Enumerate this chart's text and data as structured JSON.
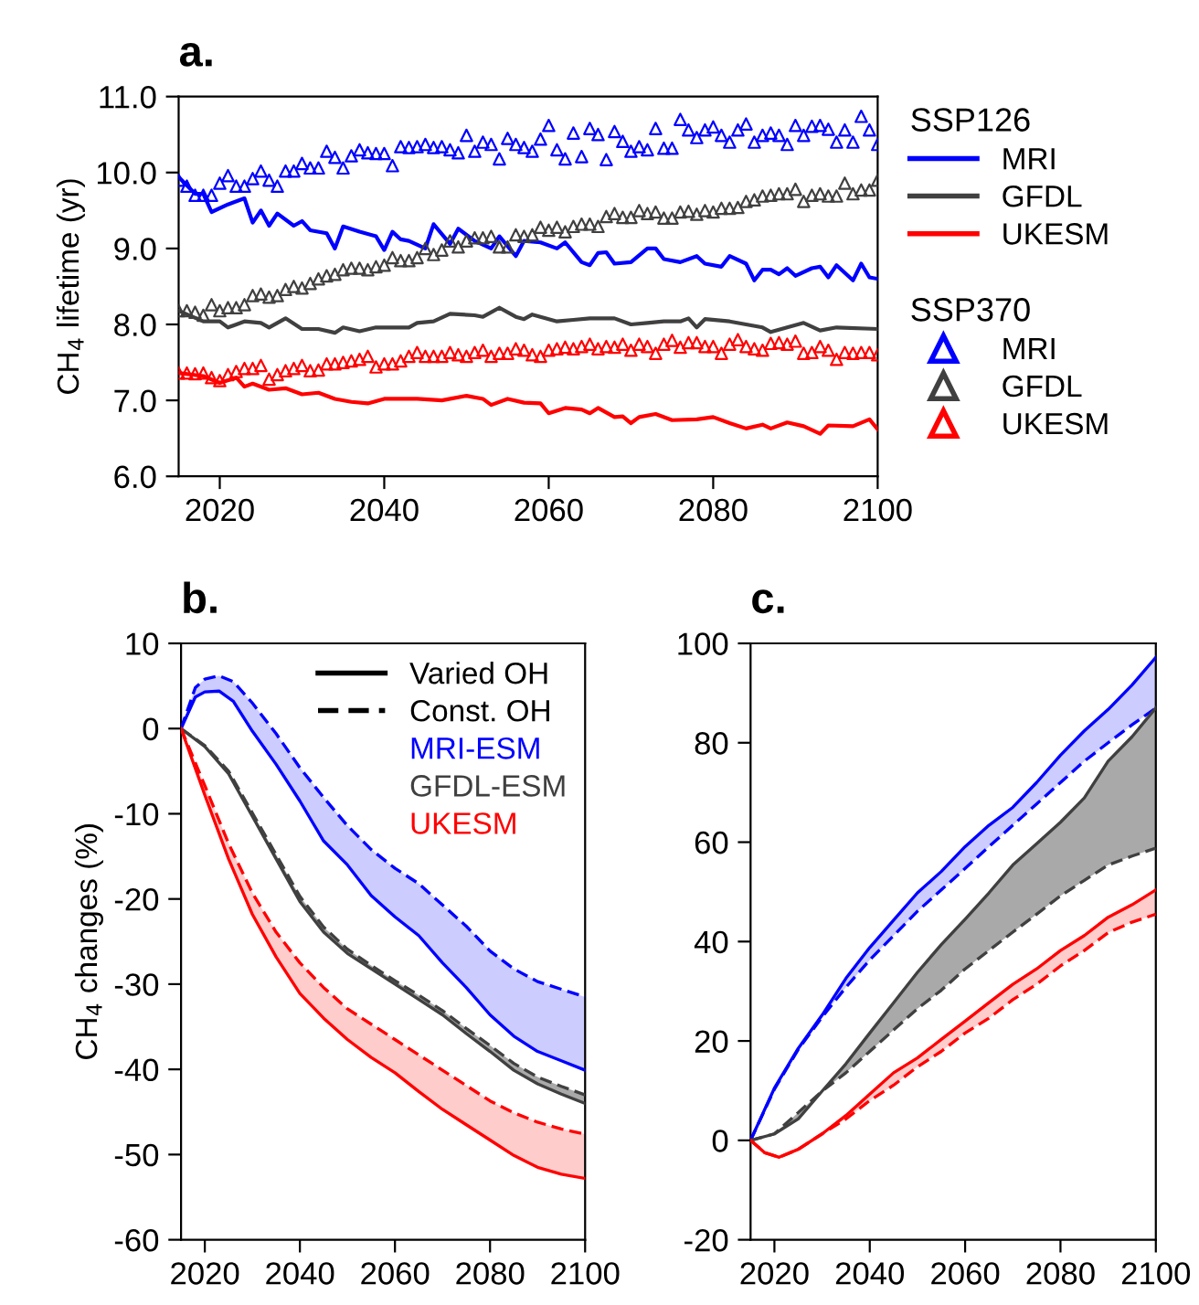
{
  "chart_data": [
    {
      "type": "line",
      "title": "a.",
      "ylabel": "CH$_{4}$ lifetime (yr)",
      "legend": "right",
      "legend_title": [
        "SSP126",
        "SSP370"
      ],
      "xlim": [
        2015,
        2100
      ],
      "xticks": [
        2020,
        2040,
        2060,
        2080,
        2100
      ],
      "ylim": [
        6,
        11
      ],
      "yticks": [
        {
          "value": 6,
          "label": "6.0"
        },
        {
          "value": 7,
          "label": "7.0"
        },
        {
          "value": 8,
          "label": "8.0"
        },
        {
          "value": 9,
          "label": "9.0"
        },
        {
          "value": 10,
          "label": "10.0"
        },
        {
          "value": 11,
          "label": "11.0"
        }
      ],
      "x": [
        2015,
        2016,
        2017,
        2018,
        2019,
        2020,
        2021,
        2022,
        2023,
        2024,
        2025,
        2026,
        2027,
        2028,
        2029,
        2030,
        2031,
        2032,
        2033,
        2034,
        2035,
        2036,
        2037,
        2038,
        2039,
        2040,
        2041,
        2042,
        2043,
        2044,
        2045,
        2046,
        2047,
        2048,
        2049,
        2050,
        2051,
        2052,
        2053,
        2054,
        2055,
        2056,
        2057,
        2058,
        2059,
        2060,
        2061,
        2062,
        2063,
        2064,
        2065,
        2066,
        2067,
        2068,
        2069,
        2070,
        2071,
        2072,
        2073,
        2074,
        2075,
        2076,
        2077,
        2078,
        2079,
        2080,
        2081,
        2082,
        2083,
        2084,
        2085,
        2086,
        2087,
        2088,
        2089,
        2090,
        2091,
        2092,
        2093,
        2094,
        2095,
        2096,
        2097,
        2098,
        2099,
        2100
      ],
      "series": [
        {
          "name": "MRI",
          "color": "#0000ff",
          "x": [
            2015,
            2017,
            2018,
            2019,
            2021,
            2023,
            2024,
            2025,
            2026,
            2027,
            2029,
            2030,
            2031,
            2033,
            2034,
            2035,
            2037,
            2039,
            2040,
            2041,
            2042,
            2043,
            2045,
            2046,
            2048,
            2049,
            2051,
            2053,
            2054,
            2056,
            2057,
            2059,
            2061,
            2062,
            2064,
            2065,
            2066,
            2067,
            2068,
            2070,
            2072,
            2073,
            2074,
            2076,
            2078,
            2079,
            2081,
            2082,
            2084,
            2085,
            2086,
            2087,
            2088,
            2089,
            2090,
            2092,
            2093,
            2094,
            2095,
            2097,
            2098,
            2099,
            2100
          ],
          "values": [
            9.94,
            9.72,
            9.72,
            9.48,
            9.58,
            9.66,
            9.34,
            9.5,
            9.3,
            9.46,
            9.3,
            9.36,
            9.24,
            9.2,
            9.0,
            9.29,
            9.22,
            9.16,
            8.98,
            9.22,
            9.12,
            9.1,
            9.0,
            9.32,
            9.06,
            9.26,
            9.1,
            9.0,
            9.16,
            8.9,
            9.1,
            9.08,
            9.0,
            9.08,
            8.82,
            8.78,
            8.94,
            8.95,
            8.8,
            8.82,
            9.0,
            9.0,
            8.86,
            8.82,
            8.9,
            8.8,
            8.76,
            8.9,
            8.8,
            8.58,
            8.72,
            8.72,
            8.66,
            8.74,
            8.64,
            8.74,
            8.76,
            8.62,
            8.78,
            8.58,
            8.8,
            8.62,
            8.6
          ]
        },
        {
          "name": "GFDL",
          "color": "#404040",
          "x": [
            2015,
            2018,
            2020,
            2021,
            2023,
            2025,
            2026,
            2028,
            2030,
            2032,
            2034,
            2035,
            2037,
            2039,
            2041,
            2043,
            2044,
            2046,
            2048,
            2051,
            2052,
            2054,
            2056,
            2057,
            2058,
            2061,
            2063,
            2065,
            2068,
            2070,
            2072,
            2074,
            2076,
            2077,
            2078,
            2079,
            2082,
            2086,
            2087,
            2089,
            2091,
            2093,
            2095,
            2100
          ],
          "values": [
            8.18,
            8.04,
            8.04,
            7.96,
            8.04,
            8.02,
            7.96,
            8.08,
            7.94,
            7.94,
            7.89,
            7.96,
            7.91,
            7.96,
            7.96,
            7.96,
            8.02,
            8.04,
            8.14,
            8.12,
            8.1,
            8.22,
            8.1,
            8.07,
            8.13,
            8.04,
            8.06,
            8.08,
            8.08,
            8.0,
            8.02,
            8.04,
            8.04,
            8.08,
            7.96,
            8.07,
            8.04,
            7.96,
            7.9,
            7.96,
            8.02,
            7.92,
            7.96,
            7.94
          ]
        },
        {
          "name": "UKESM",
          "color": "#ff0000",
          "x": [
            2015,
            2018,
            2020,
            2022,
            2023,
            2024,
            2026,
            2028,
            2030,
            2032,
            2034,
            2036,
            2038,
            2040,
            2044,
            2047,
            2050,
            2052,
            2053,
            2055,
            2057,
            2059,
            2060,
            2062,
            2064,
            2065,
            2066,
            2068,
            2069,
            2070,
            2071,
            2073,
            2075,
            2078,
            2080,
            2082,
            2084,
            2086,
            2087,
            2089,
            2091,
            2093,
            2094,
            2097,
            2099,
            2100
          ],
          "values": [
            7.36,
            7.32,
            7.23,
            7.3,
            7.18,
            7.22,
            7.14,
            7.16,
            7.08,
            7.1,
            7.02,
            6.98,
            6.96,
            7.02,
            7.02,
            7.0,
            7.06,
            7.02,
            6.94,
            7.02,
            6.97,
            6.96,
            6.83,
            6.9,
            6.88,
            6.83,
            6.9,
            6.78,
            6.79,
            6.7,
            6.78,
            6.82,
            6.74,
            6.75,
            6.78,
            6.7,
            6.63,
            6.68,
            6.63,
            6.71,
            6.66,
            6.56,
            6.67,
            6.66,
            6.75,
            6.62
          ]
        },
        {
          "name": "MRI",
          "type": "scatter",
          "marker": "triangle",
          "color": "#0000ff",
          "values": [
            9.9,
            9.82,
            9.7,
            9.7,
            9.7,
            9.86,
            9.96,
            9.82,
            9.82,
            9.92,
            10.02,
            9.9,
            9.82,
            10.02,
            10.02,
            10.12,
            10.06,
            10.06,
            10.28,
            10.2,
            10.06,
            10.22,
            10.3,
            10.26,
            10.25,
            10.25,
            10.09,
            10.34,
            10.33,
            10.34,
            10.37,
            10.33,
            10.34,
            10.3,
            10.26,
            10.49,
            10.28,
            10.4,
            10.37,
            10.18,
            10.45,
            10.37,
            10.33,
            10.28,
            10.44,
            10.62,
            10.3,
            10.18,
            10.52,
            10.21,
            10.58,
            10.5,
            10.17,
            10.54,
            10.41,
            10.28,
            10.34,
            10.3,
            10.58,
            10.32,
            10.32,
            10.7,
            10.56,
            10.46,
            10.56,
            10.6,
            10.49,
            10.4,
            10.56,
            10.64,
            10.4,
            10.49,
            10.52,
            10.49,
            10.37,
            10.62,
            10.49,
            10.61,
            10.62,
            10.57,
            10.4,
            10.56,
            10.4,
            10.74,
            10.56,
            10.37
          ]
        },
        {
          "name": "GFDL",
          "type": "scatter",
          "marker": "triangle",
          "color": "#404040",
          "values": [
            8.18,
            8.18,
            8.16,
            8.12,
            8.26,
            8.18,
            8.22,
            8.22,
            8.26,
            8.38,
            8.4,
            8.36,
            8.38,
            8.46,
            8.5,
            8.48,
            8.54,
            8.6,
            8.64,
            8.66,
            8.72,
            8.74,
            8.74,
            8.72,
            8.76,
            8.78,
            8.88,
            8.84,
            8.84,
            8.88,
            9.0,
            8.92,
            8.98,
            9.1,
            9.02,
            9.1,
            9.14,
            9.14,
            9.16,
            9.02,
            9.02,
            9.18,
            9.16,
            9.18,
            9.28,
            9.24,
            9.28,
            9.22,
            9.29,
            9.32,
            9.32,
            9.29,
            9.42,
            9.46,
            9.41,
            9.41,
            9.5,
            9.46,
            9.48,
            9.4,
            9.4,
            9.48,
            9.49,
            9.45,
            9.5,
            9.48,
            9.53,
            9.53,
            9.54,
            9.62,
            9.64,
            9.69,
            9.7,
            9.72,
            9.72,
            9.78,
            9.62,
            9.7,
            9.72,
            9.69,
            9.69,
            9.86,
            9.72,
            9.77,
            9.77,
            9.9
          ]
        },
        {
          "name": "UKESM",
          "type": "scatter",
          "marker": "triangle",
          "color": "#ff0000",
          "values": [
            7.36,
            7.36,
            7.35,
            7.36,
            7.3,
            7.26,
            7.34,
            7.38,
            7.42,
            7.42,
            7.46,
            7.28,
            7.34,
            7.39,
            7.42,
            7.46,
            7.39,
            7.4,
            7.48,
            7.48,
            7.5,
            7.52,
            7.54,
            7.58,
            7.44,
            7.48,
            7.48,
            7.52,
            7.58,
            7.63,
            7.58,
            7.58,
            7.58,
            7.63,
            7.6,
            7.58,
            7.63,
            7.66,
            7.58,
            7.62,
            7.62,
            7.68,
            7.66,
            7.6,
            7.58,
            7.66,
            7.68,
            7.7,
            7.68,
            7.71,
            7.74,
            7.68,
            7.71,
            7.7,
            7.74,
            7.66,
            7.74,
            7.71,
            7.62,
            7.74,
            7.79,
            7.7,
            7.76,
            7.76,
            7.71,
            7.71,
            7.62,
            7.74,
            7.8,
            7.71,
            7.68,
            7.66,
            7.75,
            7.76,
            7.74,
            7.78,
            7.62,
            7.63,
            7.71,
            7.66,
            7.54,
            7.63,
            7.62,
            7.63,
            7.63,
            7.6
          ]
        }
      ]
    },
    {
      "type": "line",
      "title": "b.",
      "ylabel": "CH$_{4}$ changes (%)",
      "legend": "top right",
      "xlim": [
        2015,
        2100
      ],
      "xticks": [
        2020,
        2040,
        2060,
        2080,
        2100
      ],
      "ylim": [
        -60,
        10
      ],
      "yticks": [
        -60,
        -50,
        -40,
        -30,
        -20,
        -10,
        0,
        10
      ],
      "x": [
        2015,
        2020,
        2025,
        2030,
        2035,
        2040,
        2045,
        2050,
        2055,
        2060,
        2065,
        2070,
        2075,
        2080,
        2085,
        2090,
        2095,
        2100
      ],
      "series": [
        {
          "name": "Varied OH",
          "color": "#000000",
          "line_style": "solid",
          "values": [
            null,
            null,
            null,
            null,
            null,
            null,
            null,
            null,
            null,
            null,
            null,
            null,
            null,
            null,
            null,
            null,
            null,
            null
          ]
        },
        {
          "name": "Const. OH",
          "color": "#000000",
          "line_style": "dashed",
          "values": [
            null,
            null,
            null,
            null,
            null,
            null,
            null,
            null,
            null,
            null,
            null,
            null,
            null,
            null,
            null,
            null,
            null,
            null
          ]
        },
        {
          "name": "MRI-ESM",
          "color": "#0000ff",
          "line_style": "solid",
          "x": [
            2015,
            2018,
            2020,
            2023,
            2026,
            2030,
            2035,
            2040,
            2045,
            2050,
            2055,
            2060,
            2065,
            2070,
            2075,
            2080,
            2085,
            2090,
            2095,
            2100
          ],
          "values": [
            0,
            3.7,
            4.3,
            4.4,
            3.2,
            -0.3,
            -4.2,
            -8.5,
            -13.2,
            -16.0,
            -19.6,
            -22.1,
            -24.3,
            -27.5,
            -30.4,
            -33.6,
            -36.1,
            -37.9,
            -39.0,
            -40.1
          ],
          "lower": [
            0,
            3.7,
            4.3,
            4.4,
            3.2,
            -0.3,
            -4.2,
            -8.5,
            -13.2,
            -16.0,
            -19.6,
            -22.1,
            -24.3,
            -27.5,
            -30.4,
            -33.6,
            -36.1,
            -37.9,
            -39.0,
            -40.1
          ],
          "upper": [
            0,
            4.8,
            5.8,
            6.2,
            5.5,
            3.0,
            -0.6,
            -4.6,
            -8.1,
            -11.4,
            -14.2,
            -16.4,
            -18.2,
            -20.7,
            -23.2,
            -26.1,
            -28.2,
            -29.7,
            -30.6,
            -31.5
          ]
        },
        {
          "color": "#0000ff",
          "line_style": "dashed",
          "x": [
            2015,
            2018,
            2020,
            2023,
            2026,
            2030,
            2035,
            2040,
            2045,
            2050,
            2055,
            2060,
            2065,
            2070,
            2075,
            2080,
            2085,
            2090,
            2095,
            2100
          ],
          "values": [
            0,
            4.8,
            5.8,
            6.2,
            5.5,
            3.0,
            -0.6,
            -4.6,
            -8.1,
            -11.4,
            -14.2,
            -16.4,
            -18.2,
            -20.7,
            -23.2,
            -26.1,
            -28.2,
            -29.7,
            -30.6,
            -31.5
          ]
        },
        {
          "name": "GFDL-ESM",
          "color": "#404040",
          "line_style": "solid",
          "values": [
            0,
            -2.1,
            -5.3,
            -10.3,
            -15.3,
            -20.3,
            -23.9,
            -26.4,
            -28.2,
            -30.0,
            -31.8,
            -33.6,
            -35.8,
            -37.9,
            -40.1,
            -41.7,
            -42.9,
            -44.0
          ],
          "lower": [
            0,
            -2.1,
            -5.3,
            -10.3,
            -15.3,
            -20.3,
            -23.9,
            -26.4,
            -28.2,
            -30.0,
            -31.8,
            -33.6,
            -35.8,
            -37.9,
            -40.1,
            -41.7,
            -42.9,
            -44.0
          ],
          "upper": [
            0,
            -2.0,
            -5.0,
            -9.9,
            -14.8,
            -19.7,
            -23.3,
            -25.9,
            -27.8,
            -29.6,
            -31.3,
            -33.1,
            -35.2,
            -37.2,
            -39.3,
            -40.9,
            -42.0,
            -43.0
          ]
        },
        {
          "color": "#404040",
          "line_style": "dashed",
          "values": [
            0,
            -2.0,
            -5.0,
            -9.9,
            -14.8,
            -19.7,
            -23.3,
            -25.9,
            -27.8,
            -29.6,
            -31.3,
            -33.1,
            -35.2,
            -37.2,
            -39.3,
            -40.9,
            -42.0,
            -43.0
          ]
        },
        {
          "name": "UKESM",
          "color": "#ff0000",
          "line_style": "solid",
          "values": [
            0,
            -7.8,
            -15.3,
            -21.8,
            -26.8,
            -31.1,
            -34.0,
            -36.5,
            -38.6,
            -40.4,
            -42.6,
            -44.7,
            -46.5,
            -48.3,
            -50.1,
            -51.5,
            -52.3,
            -52.8
          ],
          "lower": [
            0,
            -7.8,
            -15.3,
            -21.8,
            -26.8,
            -31.1,
            -34.0,
            -36.5,
            -38.6,
            -40.4,
            -42.6,
            -44.7,
            -46.5,
            -48.3,
            -50.1,
            -51.5,
            -52.3,
            -52.8
          ],
          "upper": [
            0,
            -6.7,
            -13.5,
            -19.3,
            -23.9,
            -27.5,
            -30.4,
            -32.9,
            -34.7,
            -36.5,
            -38.3,
            -40.1,
            -41.9,
            -43.7,
            -45.1,
            -46.2,
            -47.0,
            -47.6
          ]
        },
        {
          "color": "#ff0000",
          "line_style": "dashed",
          "values": [
            0,
            -6.7,
            -13.5,
            -19.3,
            -23.9,
            -27.5,
            -30.4,
            -32.9,
            -34.7,
            -36.5,
            -38.3,
            -40.1,
            -41.9,
            -43.7,
            -45.1,
            -46.2,
            -47.0,
            -47.6
          ]
        }
      ]
    },
    {
      "type": "line",
      "title": "c.",
      "xlim": [
        2015,
        2100
      ],
      "xticks": [
        2020,
        2040,
        2060,
        2080,
        2100
      ],
      "ylim": [
        -20,
        100
      ],
      "yticks": [
        -20,
        0,
        20,
        40,
        60,
        80,
        100
      ],
      "x": [
        2015,
        2020,
        2025,
        2030,
        2035,
        2040,
        2045,
        2050,
        2055,
        2060,
        2065,
        2070,
        2075,
        2080,
        2085,
        2090,
        2095,
        2100
      ],
      "series": [
        {
          "color": "#0000ff",
          "line_style": "solid",
          "values": [
            0,
            10.5,
            18.5,
            25.2,
            32.6,
            38.8,
            44.3,
            49.8,
            54.1,
            59.1,
            63.4,
            67.0,
            72.0,
            77.5,
            82.4,
            86.7,
            91.6,
            97.2
          ],
          "lower": [
            0,
            10.3,
            18.3,
            24.8,
            30.8,
            36.3,
            41.2,
            46.1,
            50.4,
            54.7,
            59.1,
            63.4,
            67.7,
            72.0,
            76.3,
            80.0,
            83.6,
            87.0
          ],
          "upper": [
            0,
            10.5,
            18.5,
            25.2,
            32.6,
            38.8,
            44.3,
            49.8,
            54.1,
            59.1,
            63.4,
            67.0,
            72.0,
            77.5,
            82.4,
            86.7,
            91.6,
            97.2
          ]
        },
        {
          "color": "#0000ff",
          "line_style": "dashed",
          "values": [
            0,
            10.3,
            18.3,
            24.8,
            30.8,
            36.3,
            41.2,
            46.1,
            50.4,
            54.7,
            59.1,
            63.4,
            67.7,
            72.0,
            76.3,
            80.0,
            83.6,
            87.0
          ]
        },
        {
          "color": "#404040",
          "line_style": "solid",
          "values": [
            0,
            1.3,
            4.3,
            9.9,
            15.4,
            21.6,
            27.7,
            33.8,
            39.4,
            44.5,
            49.8,
            55.4,
            59.7,
            64.0,
            68.9,
            76.3,
            81.2,
            87.0
          ],
          "lower": [
            0,
            1.3,
            4.3,
            9.9,
            13.6,
            17.9,
            22.2,
            26.5,
            30.2,
            34.5,
            38.2,
            41.9,
            45.5,
            49.2,
            52.3,
            55.4,
            57.2,
            58.8
          ],
          "upper": [
            0,
            1.3,
            5.6,
            9.9,
            15.4,
            21.6,
            27.7,
            33.8,
            39.4,
            44.5,
            49.8,
            55.4,
            59.7,
            64.0,
            68.9,
            76.3,
            81.2,
            87.0
          ]
        },
        {
          "color": "#404040",
          "line_style": "dashed",
          "values": [
            0,
            1.3,
            5.6,
            9.9,
            13.6,
            17.9,
            22.2,
            26.5,
            30.2,
            34.5,
            38.2,
            41.9,
            45.5,
            49.2,
            52.3,
            55.4,
            57.2,
            58.8
          ]
        },
        {
          "color": "#ff0000",
          "line_style": "solid",
          "x": [
            2015,
            2018,
            2021,
            2025,
            2030,
            2035,
            2040,
            2045,
            2050,
            2055,
            2060,
            2065,
            2070,
            2075,
            2080,
            2085,
            2090,
            2095,
            2100
          ],
          "values": [
            0,
            -2.5,
            -3.4,
            -1.8,
            1.3,
            5.0,
            9.3,
            13.6,
            16.6,
            20.3,
            24.0,
            27.7,
            31.4,
            34.5,
            38.2,
            41.2,
            44.9,
            47.4,
            50.4
          ],
          "lower": [
            0,
            -2.5,
            -3.4,
            -1.8,
            1.3,
            4.3,
            8.0,
            11.1,
            14.8,
            17.9,
            21.6,
            24.6,
            28.3,
            31.4,
            35.1,
            38.2,
            41.8,
            43.9,
            45.5
          ],
          "upper": [
            0,
            -2.5,
            -3.4,
            -1.8,
            1.3,
            5.0,
            9.3,
            13.6,
            16.6,
            20.3,
            24.0,
            27.7,
            31.4,
            34.5,
            38.2,
            41.2,
            44.9,
            47.4,
            50.4
          ]
        },
        {
          "color": "#ff0000",
          "line_style": "dashed",
          "x": [
            2015,
            2018,
            2021,
            2025,
            2030,
            2035,
            2040,
            2045,
            2050,
            2055,
            2060,
            2065,
            2070,
            2075,
            2080,
            2085,
            2090,
            2095,
            2100
          ],
          "values": [
            0,
            -2.5,
            -3.4,
            -1.8,
            1.3,
            4.3,
            8.0,
            11.1,
            14.8,
            17.9,
            21.6,
            24.6,
            28.3,
            31.4,
            35.1,
            38.2,
            41.8,
            43.9,
            45.5
          ]
        }
      ]
    }
  ]
}
